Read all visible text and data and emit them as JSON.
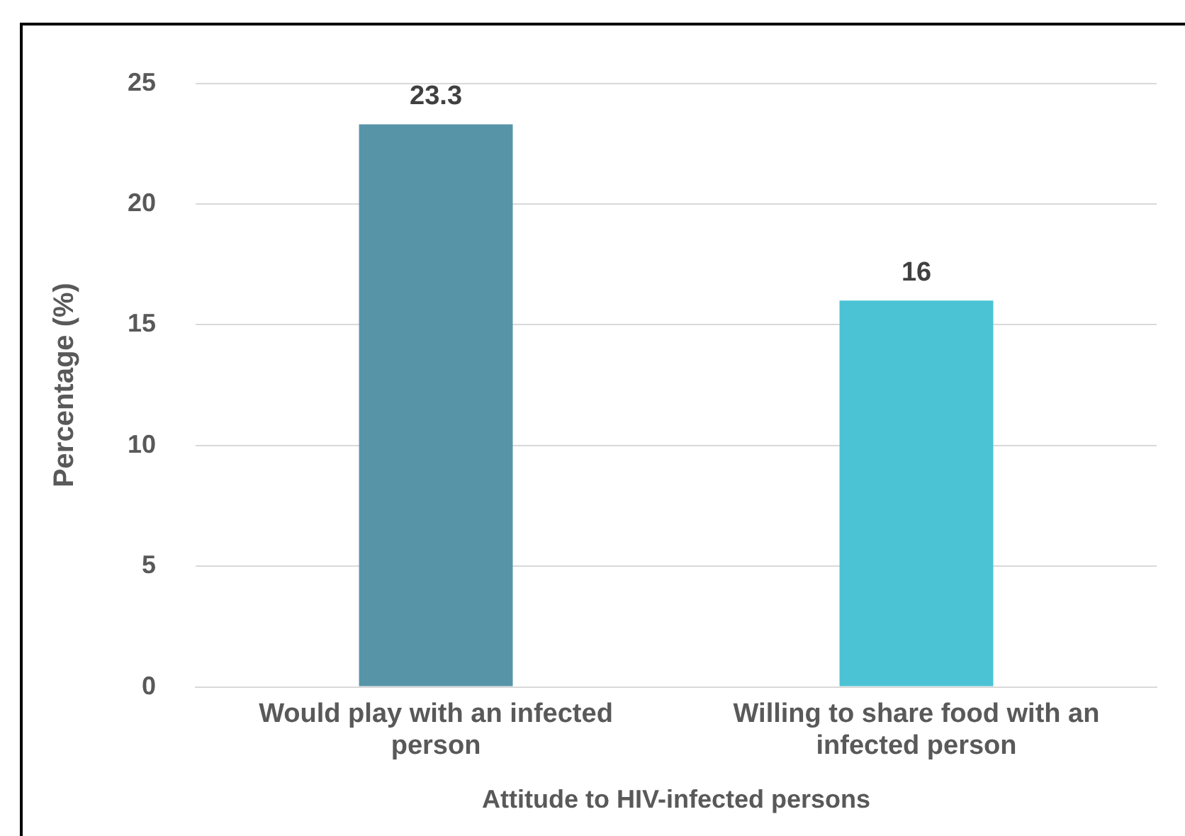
{
  "chart_data": {
    "type": "bar",
    "xlabel": "Attitude to HIV-infected persons",
    "ylabel": "Percentage (%)",
    "categories": [
      "Would play with an infected person",
      "Willing to share food with an infected person"
    ],
    "values": [
      23.3,
      16
    ],
    "colors": [
      "#5794a8",
      "#4bc3d4"
    ],
    "ylim": [
      0,
      25
    ],
    "yticks": [
      0,
      5,
      10,
      15,
      20,
      25
    ],
    "grid": "y",
    "data_labels": true,
    "legend": false
  }
}
